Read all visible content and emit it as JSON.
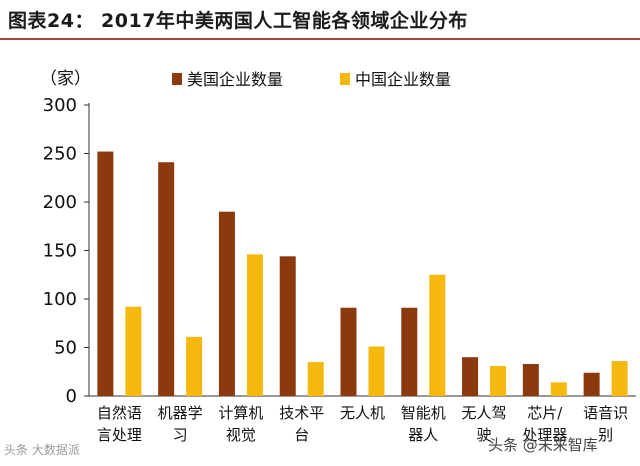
{
  "header": {
    "title": "图表24：  2017年中美两国人工智能各领域企业分布"
  },
  "watermarks": {
    "left": "头条 大数据派",
    "right": "头条 @未来智库"
  },
  "colors": {
    "us": "#8b3a0e",
    "cn": "#f5b80c",
    "title_rule": "#a8413a"
  },
  "chart_data": {
    "type": "bar",
    "title": "2017年中美两国人工智能各领域企业分布",
    "unit_label": "（家）",
    "categories": [
      [
        "自然语",
        "言处理"
      ],
      [
        "机器学",
        "习"
      ],
      [
        "计算机",
        "视觉"
      ],
      [
        "技术平",
        "台"
      ],
      [
        "无人机"
      ],
      [
        "智能机",
        "器人"
      ],
      [
        "无人驾",
        "驶"
      ],
      [
        "芯片/",
        "处理器"
      ],
      [
        "语音识",
        "别"
      ]
    ],
    "series": [
      {
        "name": "美国企业数量",
        "color": "#8b3a0e",
        "values": [
          252,
          241,
          190,
          144,
          91,
          91,
          40,
          33,
          24
        ]
      },
      {
        "name": "中国企业数量",
        "color": "#f5b80c",
        "values": [
          92,
          61,
          146,
          35,
          51,
          125,
          31,
          14,
          36
        ]
      }
    ],
    "ylim": [
      0,
      300
    ],
    "yticks": [
      0,
      50,
      100,
      150,
      200,
      250,
      300
    ],
    "legend_position": "top",
    "grid": false
  }
}
